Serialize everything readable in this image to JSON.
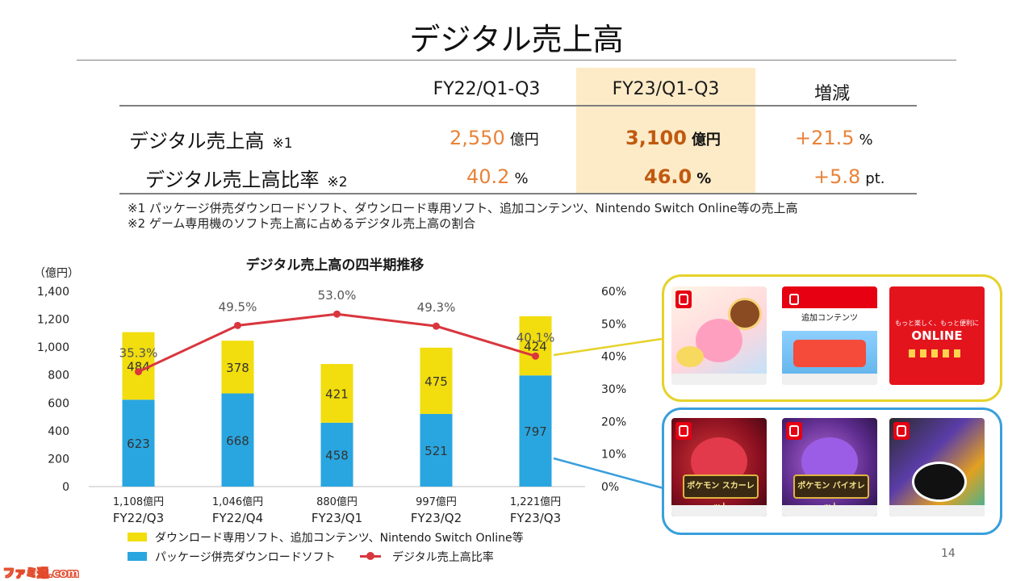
{
  "page": {
    "title": "デジタル売上高",
    "page_number": "14",
    "watermark": "ファミ通.com"
  },
  "summary_table": {
    "columns": [
      "FY22/Q1-Q3",
      "FY23/Q1-Q3",
      "増減"
    ],
    "highlight_column": "FY23/Q1-Q3",
    "rows": [
      {
        "label": "デジタル売上高",
        "note_ref": "※1",
        "fy22": {
          "value": "2,550",
          "unit": "億円"
        },
        "fy23": {
          "value": "3,100",
          "unit": "億円"
        },
        "change": {
          "value": "+21.5",
          "unit": "%"
        }
      },
      {
        "label": "デジタル売上高比率",
        "note_ref": "※2",
        "fy22": {
          "value": "40.2",
          "unit": "%"
        },
        "fy23": {
          "value": "46.0",
          "unit": "%"
        },
        "change": {
          "value": "+5.8",
          "unit": "pt."
        }
      }
    ],
    "notes": [
      "※1 パッケージ併売ダウンロードソフト、ダウンロード専用ソフト、追加コンテンツ、Nintendo Switch Online等の売上高",
      "※2 ゲーム専用機のソフト売上高に占めるデジタル売上高の割合"
    ]
  },
  "chart_data": {
    "type": "bar",
    "stacked": true,
    "title": "デジタル売上高の四半期推移",
    "y_unit_label": "（億円）",
    "ylim": [
      0,
      1400
    ],
    "yticks": [
      "0",
      "200",
      "400",
      "600",
      "800",
      "1,000",
      "1,200",
      "1,400"
    ],
    "y2lim": [
      0,
      60
    ],
    "y2ticks": [
      "0%",
      "10%",
      "20%",
      "30%",
      "40%",
      "50%",
      "60%"
    ],
    "categories": [
      "FY22/Q3",
      "FY22/Q4",
      "FY23/Q1",
      "FY23/Q2",
      "FY23/Q3"
    ],
    "totals": [
      "1,108億円",
      "1,046億円",
      "880億円",
      "997億円",
      "1,221億円"
    ],
    "series": [
      {
        "name": "パッケージ併売ダウンロードソフト",
        "color": "#29a6e0",
        "values": [
          623,
          668,
          458,
          521,
          797
        ]
      },
      {
        "name": "ダウンロード専用ソフト、追加コンテンツ、Nintendo Switch Online等",
        "color": "#f2dd0e",
        "values": [
          484,
          378,
          421,
          475,
          424
        ]
      },
      {
        "name": "デジタル売上高比率",
        "type": "line",
        "axis": "right",
        "color": "#d9363e",
        "values": [
          35.3,
          49.5,
          53.0,
          49.3,
          40.1
        ],
        "labels": [
          "35.3%",
          "49.5%",
          "53.0%",
          "49.3%",
          "40.1%"
        ]
      }
    ],
    "legend": "bottom-left",
    "grid": false
  },
  "products": {
    "download_only_panel_color": "#e6d22a",
    "package_panel_color": "#3a9fdb",
    "card2_text": "追加コンテンツ",
    "card3_top": "もっと楽しく、もっと便利に",
    "card3_logo": "ONLINE",
    "card4_title": "ポケモン スカーレット",
    "card5_title": "ポケモン バイオレット"
  }
}
